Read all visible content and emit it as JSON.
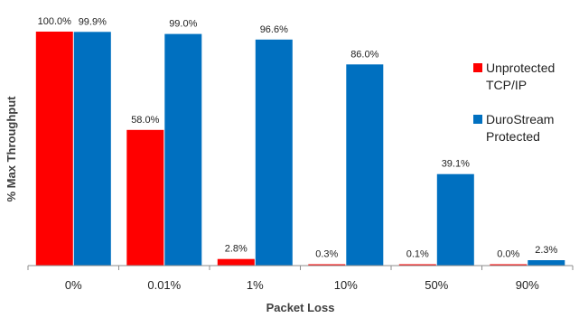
{
  "chart_data": {
    "type": "bar",
    "title": "",
    "xlabel": "Packet Loss",
    "ylabel": "% Max Throughput",
    "categories": [
      "0%",
      "0.01%",
      "1%",
      "10%",
      "50%",
      "90%"
    ],
    "ylim": [
      0,
      100
    ],
    "grid": false,
    "legend_position": "right",
    "series": [
      {
        "name": "Unprotected TCP/IP",
        "legend_lines": [
          "Unprotected",
          "TCP/IP"
        ],
        "color": "#ff0000",
        "values": [
          100.0,
          58.0,
          2.8,
          0.3,
          0.1,
          0.0
        ],
        "labels": [
          "100.0%",
          "58.0%",
          "2.8%",
          "0.3%",
          "0.1%",
          "0.0%"
        ]
      },
      {
        "name": "DuroStream Protected",
        "legend_lines": [
          "DuroStream",
          "Protected"
        ],
        "color": "#0070c0",
        "values": [
          99.9,
          99.0,
          96.6,
          86.0,
          39.1,
          2.3
        ],
        "labels": [
          "99.9%",
          "99.0%",
          "96.6%",
          "86.0%",
          "39.1%",
          "2.3%"
        ]
      }
    ]
  }
}
